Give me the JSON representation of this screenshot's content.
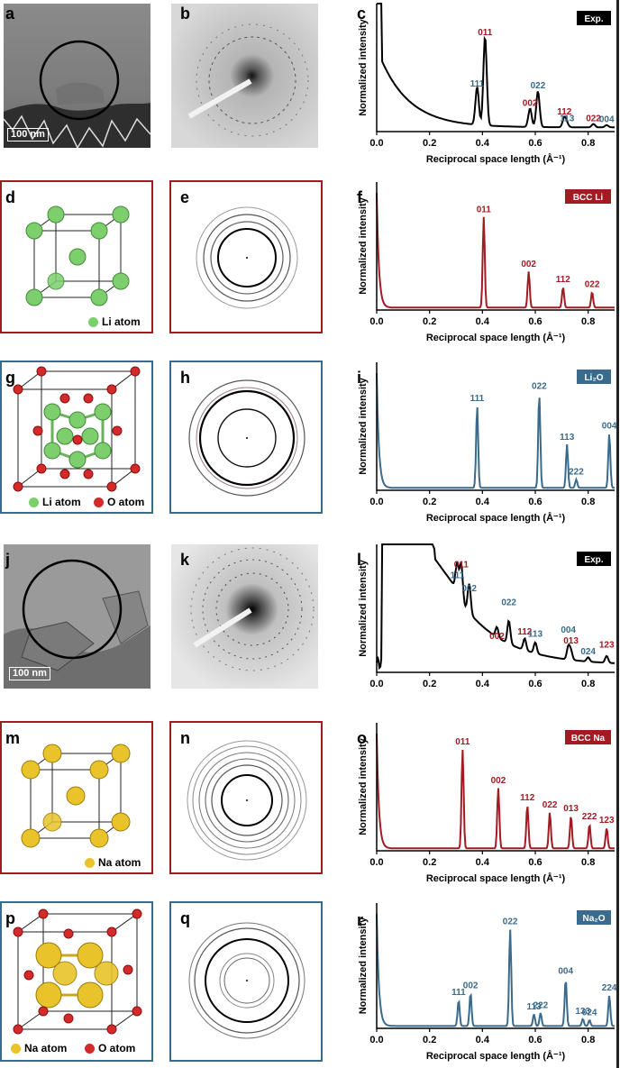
{
  "panels": {
    "a": "a",
    "b": "b",
    "c": "c",
    "d": "d",
    "e": "e",
    "f": "f",
    "g": "g",
    "h": "h",
    "i": "i",
    "j": "j",
    "k": "k",
    "l": "l",
    "m": "m",
    "n": "n",
    "o": "o",
    "p": "p",
    "q": "q",
    "r": "r"
  },
  "scale_bars": {
    "a": "100 nm",
    "j": "100 nm"
  },
  "legends": {
    "d": [
      {
        "label": "Li atom",
        "color": "#7ccf6c"
      }
    ],
    "g": [
      {
        "label": "Li atom",
        "color": "#7ccf6c"
      },
      {
        "label": "O atom",
        "color": "#d42a2a"
      }
    ],
    "m": [
      {
        "label": "Na atom",
        "color": "#e8c42a"
      }
    ],
    "p": [
      {
        "label": "Na atom",
        "color": "#e8c42a"
      },
      {
        "label": "O atom",
        "color": "#d42a2a"
      }
    ]
  },
  "colors": {
    "red": "#a31b22",
    "blue": "#3a6a8c",
    "black": "#000000"
  },
  "chart_data": [
    {
      "panel": "c",
      "type": "line",
      "badge": "Exp.",
      "badge_color": "#000000",
      "line_color": "#000000",
      "xlabel": "Reciprocal space length (Å⁻¹)",
      "ylabel": "Normalized intensity",
      "xlim": [
        0,
        0.9
      ],
      "xticks": [
        "0.0",
        "0.2",
        "0.4",
        "0.6",
        "0.8"
      ],
      "curve": "exp1",
      "peaks": [
        {
          "x": 0.38,
          "y": 0.35,
          "label": "111",
          "color": "blue"
        },
        {
          "x": 0.41,
          "y": 0.82,
          "label": "011",
          "color": "red"
        },
        {
          "x": 0.58,
          "y": 0.17,
          "label": "002",
          "color": "red"
        },
        {
          "x": 0.61,
          "y": 0.33,
          "label": "022",
          "color": "blue"
        },
        {
          "x": 0.71,
          "y": 0.09,
          "label": "112",
          "color": "red"
        },
        {
          "x": 0.72,
          "y": 0.03,
          "label": "113",
          "color": "blue"
        },
        {
          "x": 0.82,
          "y": 0.03,
          "label": "022",
          "color": "red"
        },
        {
          "x": 0.87,
          "y": 0.02,
          "label": "004",
          "color": "blue"
        }
      ]
    },
    {
      "panel": "f",
      "type": "line",
      "badge": "BCC Li",
      "badge_color": "#a31b22",
      "line_color": "#a31b22",
      "xlabel": "Reciprocal space length (Å⁻¹)",
      "ylabel": "Normalized intensity",
      "xlim": [
        0,
        0.9
      ],
      "xticks": [
        "0.0",
        "0.2",
        "0.4",
        "0.6",
        "0.8"
      ],
      "curve": "sim",
      "peaks": [
        {
          "x": 0.405,
          "y": 0.75,
          "label": "011",
          "color": "red"
        },
        {
          "x": 0.575,
          "y": 0.3,
          "label": "002",
          "color": "red"
        },
        {
          "x": 0.705,
          "y": 0.17,
          "label": "112",
          "color": "red"
        },
        {
          "x": 0.815,
          "y": 0.13,
          "label": "022",
          "color": "red"
        }
      ]
    },
    {
      "panel": "i",
      "type": "line",
      "badge": "Li₂O",
      "badge_color": "#3a6a8c",
      "line_color": "#3a6a8c",
      "xlabel": "Reciprocal space length (Å⁻¹)",
      "ylabel": "Normalized intensity",
      "xlim": [
        0,
        0.9
      ],
      "xticks": [
        "0.0",
        "0.2",
        "0.4",
        "0.6",
        "0.8"
      ],
      "curve": "sim",
      "peaks": [
        {
          "x": 0.38,
          "y": 0.68,
          "label": "111",
          "color": "blue"
        },
        {
          "x": 0.615,
          "y": 0.78,
          "label": "022",
          "color": "blue"
        },
        {
          "x": 0.72,
          "y": 0.36,
          "label": "113",
          "color": "blue"
        },
        {
          "x": 0.755,
          "y": 0.07,
          "label": "222",
          "color": "blue"
        },
        {
          "x": 0.88,
          "y": 0.45,
          "label": "004",
          "color": "blue"
        }
      ]
    },
    {
      "panel": "l",
      "type": "line",
      "badge": "Exp.",
      "badge_color": "#000000",
      "line_color": "#000000",
      "xlabel": "",
      "ylabel": "Normalized intensity",
      "xlim": [
        0,
        0.9
      ],
      "xticks": [
        "0.0",
        "0.2",
        "0.4",
        "0.6",
        "0.8"
      ],
      "curve": "exp2",
      "peaks": [
        {
          "x": 0.305,
          "y": 0.8,
          "label": "111",
          "color": "blue"
        },
        {
          "x": 0.32,
          "y": 0.9,
          "label": "011",
          "color": "red"
        },
        {
          "x": 0.35,
          "y": 0.68,
          "label": "002",
          "color": "blue"
        },
        {
          "x": 0.455,
          "y": 0.24,
          "label": "002",
          "color": "red"
        },
        {
          "x": 0.5,
          "y": 0.55,
          "label": "022",
          "color": "blue"
        },
        {
          "x": 0.56,
          "y": 0.28,
          "label": "112",
          "color": "red"
        },
        {
          "x": 0.6,
          "y": 0.26,
          "label": "113",
          "color": "blue"
        },
        {
          "x": 0.725,
          "y": 0.3,
          "label": "004",
          "color": "blue"
        },
        {
          "x": 0.735,
          "y": 0.2,
          "label": "013",
          "color": "red"
        },
        {
          "x": 0.8,
          "y": 0.1,
          "label": "024",
          "color": "blue"
        },
        {
          "x": 0.87,
          "y": 0.16,
          "label": "123",
          "color": "red"
        }
      ]
    },
    {
      "panel": "o",
      "type": "line",
      "badge": "BCC Na",
      "badge_color": "#a31b22",
      "line_color": "#a31b22",
      "xlabel": "Reciprocal space length (Å⁻¹)",
      "ylabel": "Normalized intensity",
      "xlim": [
        0,
        0.9
      ],
      "xticks": [
        "0.0",
        "0.2",
        "0.4",
        "0.6",
        "0.8"
      ],
      "curve": "sim",
      "peaks": [
        {
          "x": 0.325,
          "y": 0.82,
          "label": "011",
          "color": "red"
        },
        {
          "x": 0.46,
          "y": 0.5,
          "label": "002",
          "color": "red"
        },
        {
          "x": 0.57,
          "y": 0.36,
          "label": "112",
          "color": "red"
        },
        {
          "x": 0.655,
          "y": 0.3,
          "label": "022",
          "color": "red"
        },
        {
          "x": 0.735,
          "y": 0.27,
          "label": "013",
          "color": "red"
        },
        {
          "x": 0.805,
          "y": 0.2,
          "label": "222",
          "color": "red"
        },
        {
          "x": 0.87,
          "y": 0.17,
          "label": "123",
          "color": "red"
        }
      ]
    },
    {
      "panel": "r",
      "type": "line",
      "badge": "Na₂O",
      "badge_color": "#3a6a8c",
      "line_color": "#3a6a8c",
      "xlabel": "Reciprocal space length (Å⁻¹)",
      "ylabel": "Normalized intensity",
      "xlim": [
        0,
        0.9
      ],
      "xticks": [
        "0.0",
        "0.2",
        "0.4",
        "0.6",
        "0.8"
      ],
      "curve": "sim",
      "peaks": [
        {
          "x": 0.31,
          "y": 0.22,
          "label": "111",
          "color": "blue"
        },
        {
          "x": 0.355,
          "y": 0.28,
          "label": "002",
          "color": "blue"
        },
        {
          "x": 0.505,
          "y": 0.82,
          "label": "022",
          "color": "blue"
        },
        {
          "x": 0.595,
          "y": 0.1,
          "label": "113",
          "color": "blue"
        },
        {
          "x": 0.62,
          "y": 0.11,
          "label": "222",
          "color": "blue"
        },
        {
          "x": 0.715,
          "y": 0.4,
          "label": "004",
          "color": "blue"
        },
        {
          "x": 0.78,
          "y": 0.06,
          "label": "133",
          "color": "blue"
        },
        {
          "x": 0.805,
          "y": 0.05,
          "label": "024",
          "color": "blue"
        },
        {
          "x": 0.88,
          "y": 0.26,
          "label": "224",
          "color": "blue"
        }
      ]
    }
  ]
}
